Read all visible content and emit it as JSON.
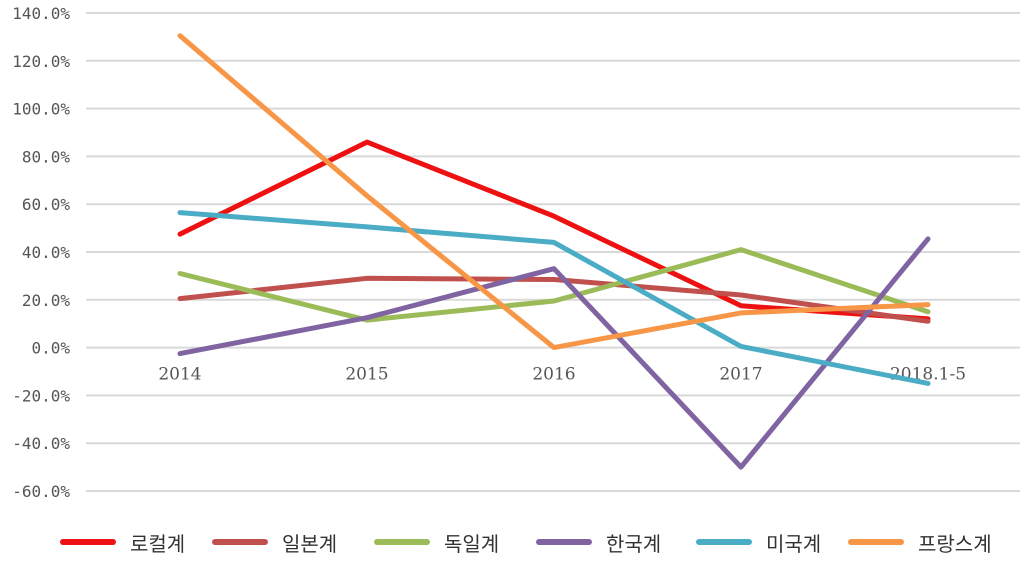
{
  "chart_data": {
    "type": "line",
    "categories": [
      "2014",
      "2015",
      "2016",
      "2017",
      "2018.1-5"
    ],
    "y_ticks": [
      "140.0%",
      "120.0%",
      "100.0%",
      "80.0%",
      "60.0%",
      "40.0%",
      "20.0%",
      "0.0%",
      "-20.0%",
      "-40.0%",
      "-60.0%"
    ],
    "ylim": [
      -60,
      140
    ],
    "y_unit": "%",
    "grid": true,
    "legend_position": "bottom",
    "series": [
      {
        "name": "로컬계",
        "color": "#ee1111",
        "values": [
          47.5,
          86.0,
          55.0,
          17.5,
          12.0
        ]
      },
      {
        "name": "일본계",
        "color": "#c0504d",
        "values": [
          20.5,
          29.0,
          28.5,
          22.0,
          11.0
        ]
      },
      {
        "name": "독일계",
        "color": "#9bbb59",
        "values": [
          31.0,
          11.5,
          19.5,
          41.0,
          15.0
        ]
      },
      {
        "name": "한국계",
        "color": "#8064a2",
        "values": [
          -2.5,
          12.5,
          33.0,
          -50.0,
          45.5
        ]
      },
      {
        "name": "미국계",
        "color": "#4bacc6",
        "values": [
          56.5,
          50.5,
          44.0,
          0.5,
          -15.0
        ]
      },
      {
        "name": "프랑스계",
        "color": "#f79646",
        "values": [
          130.5,
          63.5,
          0.0,
          14.5,
          18.0
        ]
      }
    ]
  }
}
